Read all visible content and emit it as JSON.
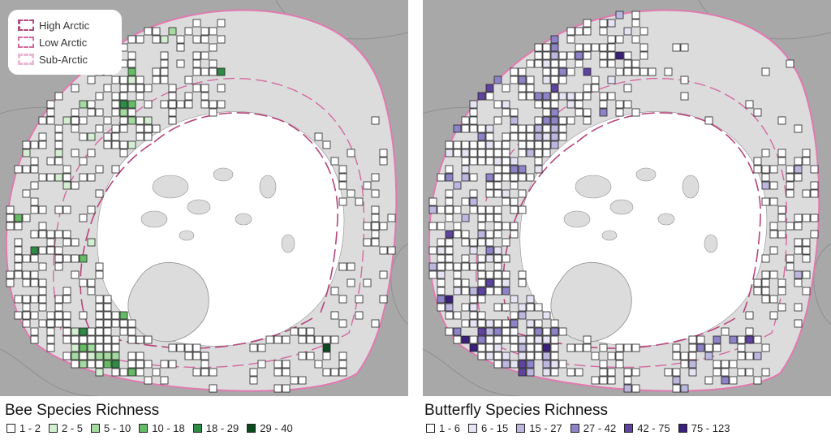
{
  "zone_legend": {
    "items": [
      {
        "label": "High Arctic",
        "color": "#b5457a"
      },
      {
        "label": "Low Arctic",
        "color": "#d26aa0"
      },
      {
        "label": "Sub-Arctic",
        "color": "#ecb8d4"
      }
    ]
  },
  "colors": {
    "ocean": "#ffffff",
    "land_outside": "#a8a8a8",
    "land_inside": "#dcdcdc",
    "border": "#e07ab0"
  },
  "bee": {
    "title": "Bee Species Richness",
    "classes": [
      {
        "label": "1 - 2",
        "color": "#ffffff"
      },
      {
        "label": "2 - 5",
        "color": "#d4eed2"
      },
      {
        "label": "5 - 10",
        "color": "#a4d99f"
      },
      {
        "label": "10 - 18",
        "color": "#66bb66"
      },
      {
        "label": "18 - 29",
        "color": "#2e8b45"
      },
      {
        "label": "29 - 40",
        "color": "#0b4a1e"
      }
    ]
  },
  "butterfly": {
    "title": "Butterfly Species Richness",
    "classes": [
      {
        "label": "1 - 6",
        "color": "#ffffff"
      },
      {
        "label": "6 - 15",
        "color": "#e6e4f2"
      },
      {
        "label": "15 - 27",
        "color": "#bcb7de"
      },
      {
        "label": "27 - 42",
        "color": "#8c84c6"
      },
      {
        "label": "42 - 75",
        "color": "#5e449f"
      },
      {
        "label": "75 - 123",
        "color": "#3b1f7d"
      }
    ]
  }
}
